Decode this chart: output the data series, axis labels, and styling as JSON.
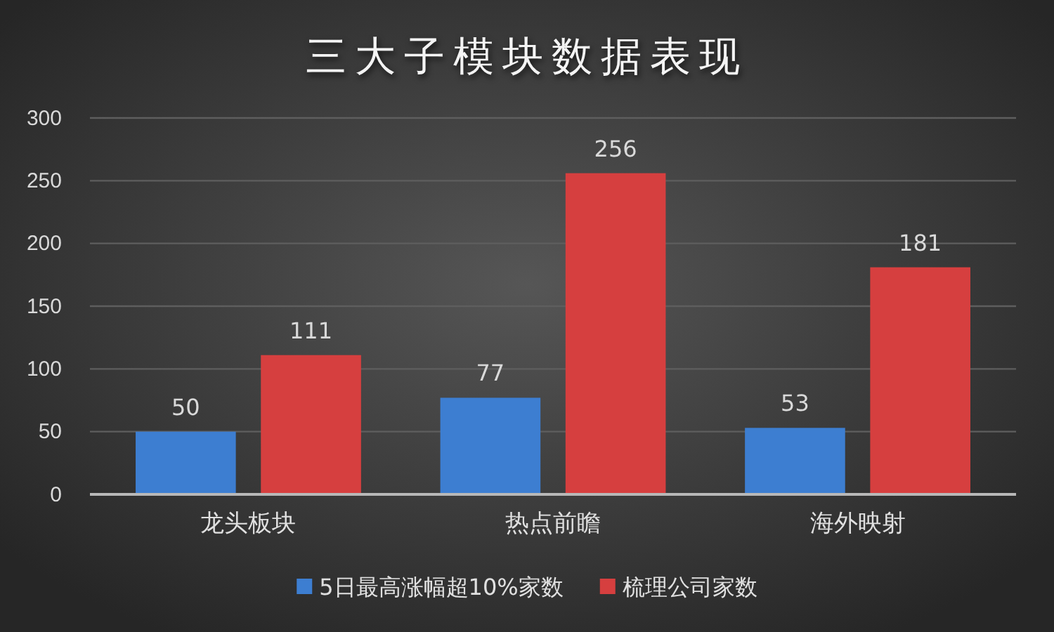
{
  "chart_data": {
    "type": "bar",
    "title": "三大子模块数据表现",
    "categories": [
      "龙头板块",
      "热点前瞻",
      "海外映射"
    ],
    "series": [
      {
        "name": "5日最高涨幅超10%家数",
        "color": "#3d7ed1",
        "values": [
          50,
          77,
          53
        ]
      },
      {
        "name": "梳理公司家数",
        "color": "#d63f3f",
        "values": [
          111,
          256,
          181
        ]
      }
    ],
    "ylim": [
      0,
      300
    ],
    "yticks": [
      0,
      50,
      100,
      150,
      200,
      250,
      300
    ],
    "grid": "y",
    "legend": "bottom",
    "data_labels": true
  }
}
